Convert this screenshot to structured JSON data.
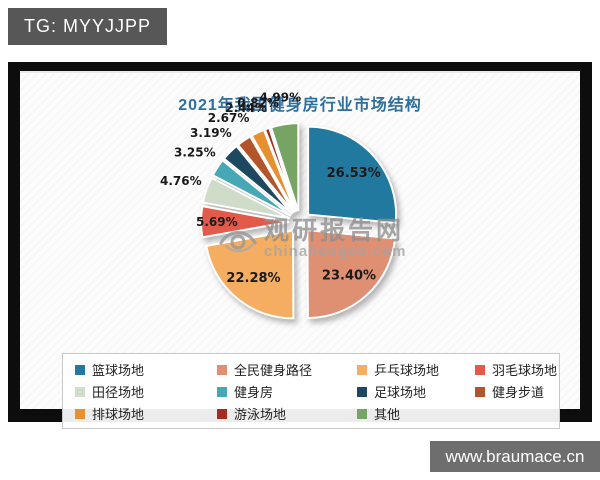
{
  "badges": {
    "tg": "TG: MYYJJPP",
    "site": "www.braumace.cn"
  },
  "watermark": {
    "brand": "观研报告网",
    "domain": "chinabaogao.com"
  },
  "chart_data": {
    "type": "pie",
    "title": "2021年我国健身房行业市场结构",
    "title_color": "#2e6f9e",
    "legend": {
      "position": "bottom",
      "columns": 4,
      "border": true
    },
    "slices": [
      {
        "label": "篮球场地",
        "value": 26.53,
        "display": "26.53%",
        "color": "#22799f",
        "label_pos": "inside"
      },
      {
        "label": "全民健身路径",
        "value": 23.4,
        "display": "23.40%",
        "color": "#df8f72",
        "label_pos": "inside"
      },
      {
        "label": "乒乓球场地",
        "value": 22.28,
        "display": "22.28%",
        "color": "#f5ad62",
        "label_pos": "inside"
      },
      {
        "label": "羽毛球场地",
        "value": 5.69,
        "display": "5.69%",
        "color": "#e25a4a",
        "label_pos": "inside"
      },
      {
        "label": "田径场地",
        "value": 4.76,
        "display": "4.76%",
        "color": "#cfdcc9",
        "label_pos": "outside"
      },
      {
        "label": "健身房",
        "value": 3.25,
        "display": "3.25%",
        "color": "#45a8b4",
        "label_pos": "outside"
      },
      {
        "label": "足球场地",
        "value": 3.19,
        "display": "3.19%",
        "color": "#1c4860",
        "label_pos": "outside"
      },
      {
        "label": "健身步道",
        "value": 2.67,
        "display": "2.67%",
        "color": "#b3542b",
        "label_pos": "outside"
      },
      {
        "label": "排球场地",
        "value": 2.44,
        "display": "2.44%",
        "color": "#e6902f",
        "label_pos": "outside"
      },
      {
        "label": "游泳场地",
        "value": 0.82,
        "display": "0.82%",
        "color": "#a42c21",
        "label_pos": "outside"
      },
      {
        "label": "其他",
        "value": 4.99,
        "display": "4.99%",
        "color": "#76a465",
        "label_pos": "outside"
      }
    ]
  }
}
